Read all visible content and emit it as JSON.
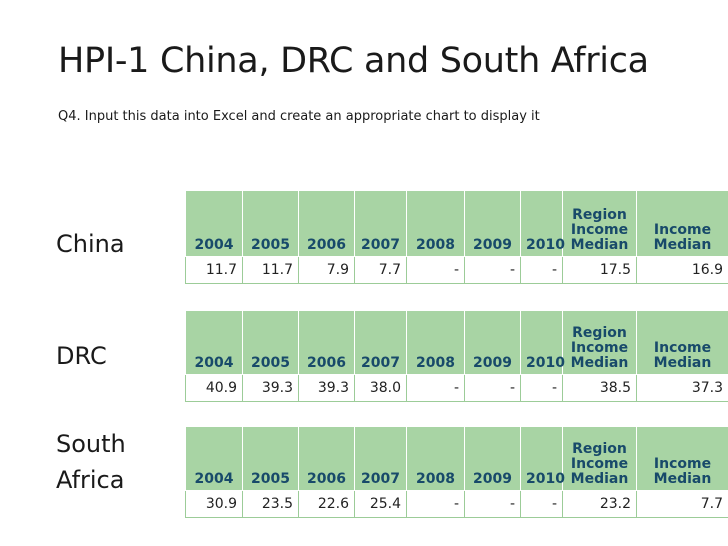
{
  "title": "HPI-1 China, DRC and South Africa",
  "subtitle": "Q4. Input this data into Excel and create an appropriate chart to display it",
  "headers": [
    "2004",
    "2005",
    "2006",
    "2007",
    "2008",
    "2009",
    "2010",
    "Region Income Median",
    "Income Median"
  ],
  "tables": [
    {
      "country": "China",
      "values": [
        "11.7",
        "11.7",
        "7.9",
        "7.7",
        "-",
        "-",
        "-",
        "17.5",
        "16.9"
      ]
    },
    {
      "country": "DRC",
      "values": [
        "40.9",
        "39.3",
        "39.3",
        "38.0",
        "-",
        "-",
        "-",
        "38.5",
        "37.3"
      ]
    },
    {
      "country_lines": [
        "South",
        "Africa"
      ],
      "values": [
        "30.9",
        "23.5",
        "22.6",
        "25.4",
        "-",
        "-",
        "-",
        "23.2",
        "7.7"
      ]
    }
  ]
}
